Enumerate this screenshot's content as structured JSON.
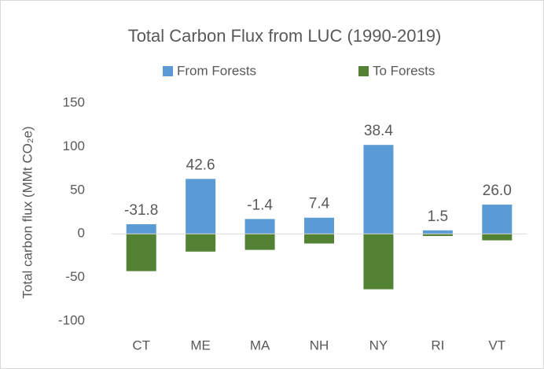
{
  "chart_data": {
    "type": "bar",
    "title": "Total Carbon Flux from LUC (1990-2019)",
    "y_label": "Total carbon flux (MMt CO₂e)",
    "categories": [
      "CT",
      "ME",
      "MA",
      "NH",
      "NY",
      "RI",
      "VT"
    ],
    "series": [
      {
        "name": "From Forests",
        "color": "#5b9bd5",
        "values": [
          11,
          63,
          17,
          18.5,
          102,
          4,
          33.5
        ]
      },
      {
        "name": "To Forests",
        "color": "#548235",
        "values": [
          -42.8,
          -20.4,
          -18.4,
          -11.1,
          -63.6,
          -2.5,
          -7.5
        ]
      }
    ],
    "data_labels": [
      "-31.8",
      "42.6",
      "-1.4",
      "7.4",
      "38.4",
      "1.5",
      "26.0"
    ],
    "ylim": [
      -100,
      150
    ],
    "yticks": [
      -100,
      -50,
      0,
      50,
      100,
      150
    ],
    "legend": "top",
    "grid": false
  }
}
